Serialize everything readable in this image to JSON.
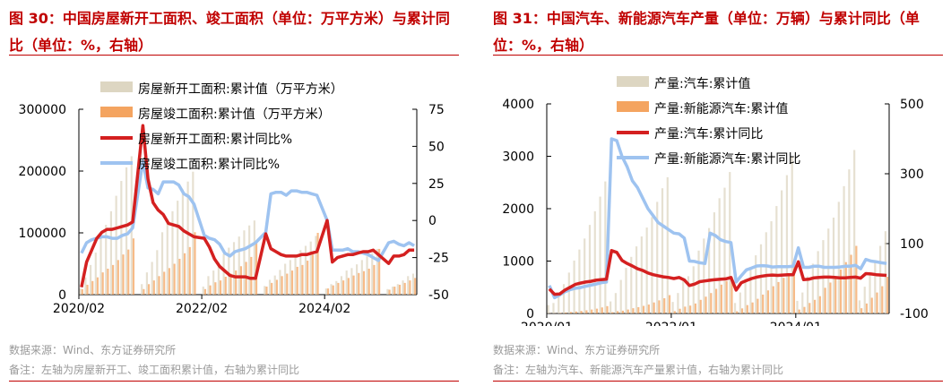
{
  "colors": {
    "accent": "#c00000",
    "bar_new": "#ddd6c2",
    "bar_done": "#f4a460",
    "line_red": "#d42020",
    "line_blue": "#9ec3f0",
    "note": "#9a9a9a"
  },
  "panels": [
    {
      "title": "图 30：中国房屋新开工面积、竣工面积（单位：万平方米）与累计同比（单位：%，右轴）",
      "source": "数据来源：Wind、东方证券研究所",
      "note": "备注：左轴为房屋新开工、竣工面积累计值，右轴为累计同比"
    },
    {
      "title": "图 31：中国汽车、新能源汽车产量（单位：万辆）与累计同比（单位：%，右轴）",
      "source": "数据来源：Wind、东方证券研究所",
      "note": "备注：左轴为汽车、新能源汽车产量累计值，右轴为累计同比"
    }
  ],
  "chart_data": [
    {
      "type": "bar+line",
      "legend": [
        "房屋新开工面积:累计值（万平方米）",
        "房屋竣工面积:累计值（万平方米）",
        "房屋新开工面积:累计同比%",
        "房屋竣工面积:累计同比%"
      ],
      "x_ticks": [
        "2020/02",
        "2022/02",
        "2024/02"
      ],
      "y_left_ticks": [
        "300000",
        "200000",
        "100000",
        "0"
      ],
      "y_right_ticks": [
        "75",
        "50",
        "25",
        "0",
        "-25",
        "-50"
      ],
      "y_left_range": [
        0,
        300000
      ],
      "y_right_range": [
        -50,
        75
      ],
      "x": [
        "2020-02",
        "2020-03",
        "2020-04",
        "2020-05",
        "2020-06",
        "2020-07",
        "2020-08",
        "2020-09",
        "2020-10",
        "2020-11",
        "2020-12",
        "2021-02",
        "2021-03",
        "2021-04",
        "2021-05",
        "2021-06",
        "2021-07",
        "2021-08",
        "2021-09",
        "2021-10",
        "2021-11",
        "2021-12",
        "2022-02",
        "2022-03",
        "2022-04",
        "2022-05",
        "2022-06",
        "2022-07",
        "2022-08",
        "2022-09",
        "2022-10",
        "2022-11",
        "2022-12",
        "2023-02",
        "2023-03",
        "2023-04",
        "2023-05",
        "2023-06",
        "2023-07",
        "2023-08",
        "2023-09",
        "2023-10",
        "2023-11",
        "2023-12",
        "2024-02",
        "2024-03",
        "2024-04",
        "2024-05",
        "2024-06",
        "2024-07",
        "2024-08",
        "2024-09",
        "2024-10",
        "2024-11",
        "2024-12",
        "2025-02",
        "2025-03",
        "2025-04",
        "2025-05",
        "2025-06",
        "2025-07"
      ],
      "new_start_cum": [
        10000,
        28000,
        48000,
        68000,
        97000,
        113000,
        135000,
        160000,
        184000,
        206000,
        224000,
        17000,
        36000,
        53000,
        72000,
        101000,
        118000,
        135000,
        152000,
        170000,
        183000,
        199000,
        13000,
        30000,
        39000,
        52000,
        66000,
        76000,
        85000,
        94000,
        104000,
        112000,
        120000,
        14000,
        24000,
        31000,
        40000,
        50000,
        56000,
        63000,
        72000,
        79000,
        86000,
        95000,
        10000,
        17000,
        22000,
        30000,
        39000,
        43000,
        49000,
        56000,
        62000,
        67000,
        74000,
        9000,
        13000,
        17000,
        23000,
        30000,
        34000
      ],
      "completed_cum": [
        9000,
        16000,
        22000,
        28000,
        36000,
        42000,
        48000,
        56000,
        65000,
        73000,
        91000,
        9000,
        17000,
        23000,
        30000,
        37000,
        43000,
        50000,
        58000,
        67000,
        77000,
        101000,
        9000,
        15000,
        20000,
        23000,
        29000,
        34000,
        39000,
        46000,
        53000,
        61000,
        86000,
        13000,
        19000,
        24000,
        30000,
        34000,
        39000,
        45000,
        48000,
        55000,
        65000,
        100000,
        10000,
        15000,
        19000,
        23000,
        27000,
        31000,
        35000,
        38000,
        42000,
        48000,
        74000,
        8000,
        13000,
        16000,
        19000,
        23000,
        27000
      ],
      "new_start_yoy": [
        -45,
        -28,
        -20,
        -12,
        -8,
        -6,
        -6,
        -5,
        -4,
        -3,
        -1,
        64,
        28,
        12,
        7,
        4,
        -2,
        -3,
        -4,
        -7,
        -9,
        -11,
        -12,
        -18,
        -26,
        -31,
        -34,
        -37,
        -38,
        -38,
        -38,
        -39,
        -39,
        -9,
        -19,
        -21,
        -23,
        -24,
        -24,
        -24,
        -23,
        -23,
        -22,
        -21,
        0,
        -28,
        -25,
        -24,
        -23,
        -23,
        -22,
        -21,
        -21,
        -20,
        -23,
        -29,
        -24,
        -24,
        -23,
        -20,
        -20
      ],
      "completed_yoy": [
        -22,
        -15,
        -13,
        -12,
        -11,
        -11,
        -12,
        -12,
        -10,
        -9,
        -5,
        40,
        22,
        21,
        18,
        26,
        26,
        26,
        24,
        18,
        16,
        11,
        -10,
        -12,
        -13,
        -16,
        -22,
        -24,
        -21,
        -20,
        -19,
        -17,
        -15,
        -8,
        18,
        19,
        19,
        17,
        20,
        20,
        19,
        19,
        18,
        17,
        0,
        -20,
        -20,
        -20,
        -19,
        -21,
        -21,
        -22,
        -23,
        -25,
        -27,
        -15,
        -14,
        -16,
        -17,
        -15,
        -17
      ]
    },
    {
      "type": "bar+line",
      "legend": [
        "产量:汽车:累计值",
        "产量:新能源汽车:累计值",
        "产量:汽车:累计同比",
        "产量:新能源汽车:累计同比"
      ],
      "x_ticks": [
        "2020/01",
        "2022/01",
        "2024/01"
      ],
      "y_left_ticks": [
        "4000",
        "3000",
        "2000",
        "1000",
        "0"
      ],
      "y_right_ticks": [
        "500",
        "300",
        "100",
        "-100"
      ],
      "y_left_range": [
        0,
        4000
      ],
      "y_right_range": [
        -100,
        500
      ],
      "x": [
        "2020-01",
        "2020-02",
        "2020-03",
        "2020-04",
        "2020-05",
        "2020-06",
        "2020-07",
        "2020-08",
        "2020-09",
        "2020-10",
        "2020-11",
        "2020-12",
        "2021-01",
        "2021-02",
        "2021-03",
        "2021-04",
        "2021-05",
        "2021-06",
        "2021-07",
        "2021-08",
        "2021-09",
        "2021-10",
        "2021-11",
        "2021-12",
        "2022-01",
        "2022-02",
        "2022-03",
        "2022-04",
        "2022-05",
        "2022-06",
        "2022-07",
        "2022-08",
        "2022-09",
        "2022-10",
        "2022-11",
        "2022-12",
        "2023-01",
        "2023-02",
        "2023-03",
        "2023-04",
        "2023-05",
        "2023-06",
        "2023-07",
        "2023-08",
        "2023-09",
        "2023-10",
        "2023-11",
        "2023-12",
        "2024-01",
        "2024-02",
        "2024-03",
        "2024-04",
        "2024-05",
        "2024-06",
        "2024-07",
        "2024-08",
        "2024-09",
        "2024-10",
        "2024-11",
        "2024-12",
        "2025-01",
        "2025-02",
        "2025-03",
        "2025-04",
        "2025-05",
        "2025-06"
      ],
      "vehicle_cum": [
        160,
        200,
        350,
        560,
        780,
        1010,
        1220,
        1430,
        1690,
        1950,
        2230,
        2520,
        230,
        390,
        640,
        870,
        1080,
        1280,
        1470,
        1640,
        1840,
        2130,
        2390,
        2600,
        220,
        390,
        620,
        710,
        900,
        1200,
        1430,
        1630,
        1930,
        2200,
        2400,
        2700,
        200,
        400,
        660,
        870,
        1110,
        1320,
        1550,
        1760,
        2050,
        2350,
        2640,
        2990,
        240,
        400,
        710,
        950,
        1190,
        1400,
        1620,
        1830,
        2130,
        2430,
        2750,
        3120,
        250,
        510,
        760,
        1020,
        1290,
        1570
      ],
      "ev_cum": [
        4,
        5,
        10,
        18,
        28,
        38,
        48,
        60,
        75,
        92,
        115,
        140,
        24,
        45,
        53,
        75,
        100,
        120,
        145,
        170,
        210,
        250,
        290,
        350,
        45,
        90,
        130,
        150,
        190,
        260,
        320,
        390,
        470,
        550,
        620,
        700,
        42,
        97,
        160,
        210,
        280,
        360,
        440,
        520,
        600,
        680,
        770,
        950,
        75,
        125,
        200,
        260,
        330,
        490,
        590,
        690,
        840,
        980,
        1120,
        1290,
        100,
        190,
        300,
        400,
        520,
        700
      ],
      "vehicle_yoy": [
        -30,
        -45,
        -44,
        -33,
        -25,
        -17,
        -13,
        -10,
        -8,
        -5,
        -3,
        -2,
        80,
        75,
        52,
        43,
        36,
        28,
        23,
        16,
        11,
        8,
        5,
        3,
        0,
        3,
        -4,
        -20,
        -16,
        -9,
        -7,
        -5,
        -3,
        -2,
        -1,
        3,
        -33,
        -12,
        -6,
        0,
        4,
        7,
        9,
        10,
        9,
        10,
        11,
        11,
        48,
        -3,
        -2,
        2,
        3,
        4,
        4,
        3,
        2,
        2,
        3,
        4,
        1,
        14,
        13,
        11,
        10,
        9
      ],
      "ev_yoy": [
        -20,
        -55,
        -47,
        -38,
        -32,
        -28,
        -26,
        -22,
        -19,
        -16,
        -12,
        -10,
        400,
        395,
        350,
        320,
        280,
        260,
        230,
        200,
        180,
        160,
        150,
        140,
        130,
        128,
        116,
        50,
        49,
        45,
        43,
        130,
        123,
        111,
        106,
        103,
        -10,
        8,
        25,
        30,
        36,
        37,
        36,
        33,
        34,
        34,
        34,
        35,
        88,
        32,
        32,
        35,
        35,
        32,
        32,
        32,
        33,
        35,
        35,
        38,
        28,
        55,
        50,
        48,
        45,
        43
      ]
    }
  ]
}
